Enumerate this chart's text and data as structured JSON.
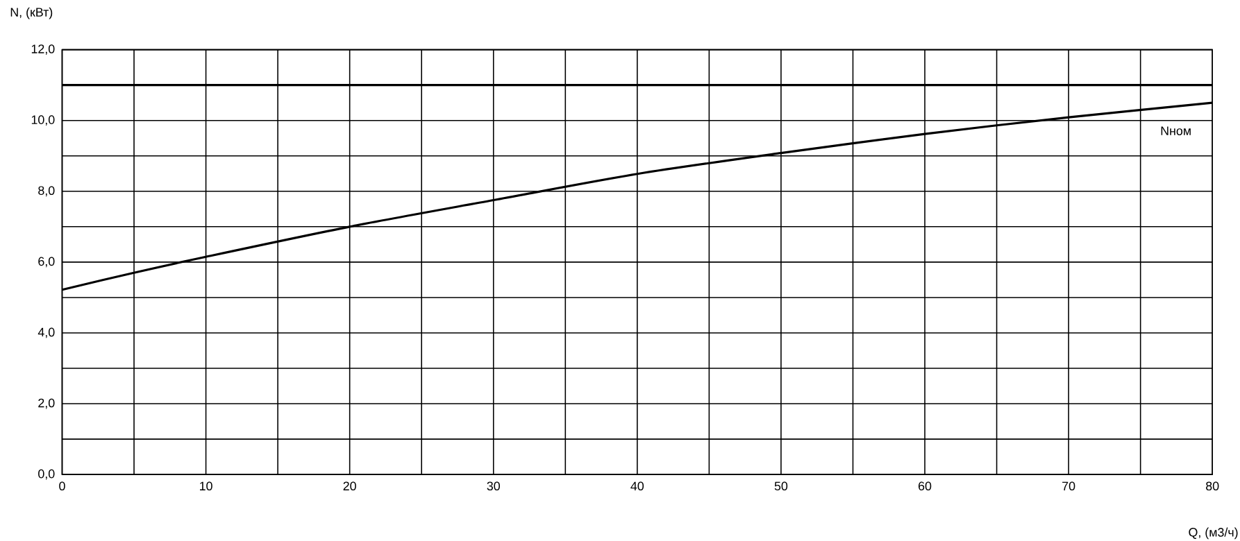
{
  "chart_data": {
    "type": "line",
    "xlabel": "Q, (м3/ч)",
    "ylabel": "N, (кВт)",
    "x": [
      0,
      5,
      10,
      20,
      30,
      40,
      50,
      60,
      70,
      80
    ],
    "series": [
      {
        "color": "#000000",
        "values": [
          5.22,
          5.7,
          6.15,
          7.0,
          7.75,
          8.49,
          9.08,
          9.62,
          10.09,
          10.5
        ]
      }
    ],
    "xlim": [
      0,
      80
    ],
    "xticks": [
      0,
      {
        "value": 5,
        "label": null
      },
      10,
      {
        "value": 15,
        "label": null
      },
      20,
      {
        "value": 25,
        "label": null
      },
      30,
      {
        "value": 35,
        "label": null
      },
      40,
      {
        "value": 45,
        "label": null
      },
      50,
      {
        "value": 55,
        "label": null
      },
      60,
      {
        "value": 65,
        "label": null
      },
      70,
      {
        "value": 75,
        "label": null
      },
      80
    ],
    "ylim": [
      0,
      12
    ],
    "yticks": [
      {
        "value": 0,
        "label": "0,0"
      },
      {
        "value": 1,
        "label": null
      },
      {
        "value": 2,
        "label": "2,0"
      },
      {
        "value": 3,
        "label": null
      },
      {
        "value": 4,
        "label": "4,0"
      },
      {
        "value": 5,
        "label": null
      },
      {
        "value": 6,
        "label": "6,0"
      },
      {
        "value": 7,
        "label": null
      },
      {
        "value": 8,
        "label": "8,0"
      },
      {
        "value": 9,
        "label": null
      },
      {
        "value": 10,
        "label": "10,0"
      },
      {
        "value": 11,
        "label": null
      },
      {
        "value": 12,
        "label": "12,0"
      }
    ],
    "ref_lines": [
      {
        "axis": "y",
        "value": 11,
        "label": "Nном",
        "color": "#000000",
        "line_style": "solid"
      }
    ],
    "grid": true,
    "line_style": "solid"
  }
}
